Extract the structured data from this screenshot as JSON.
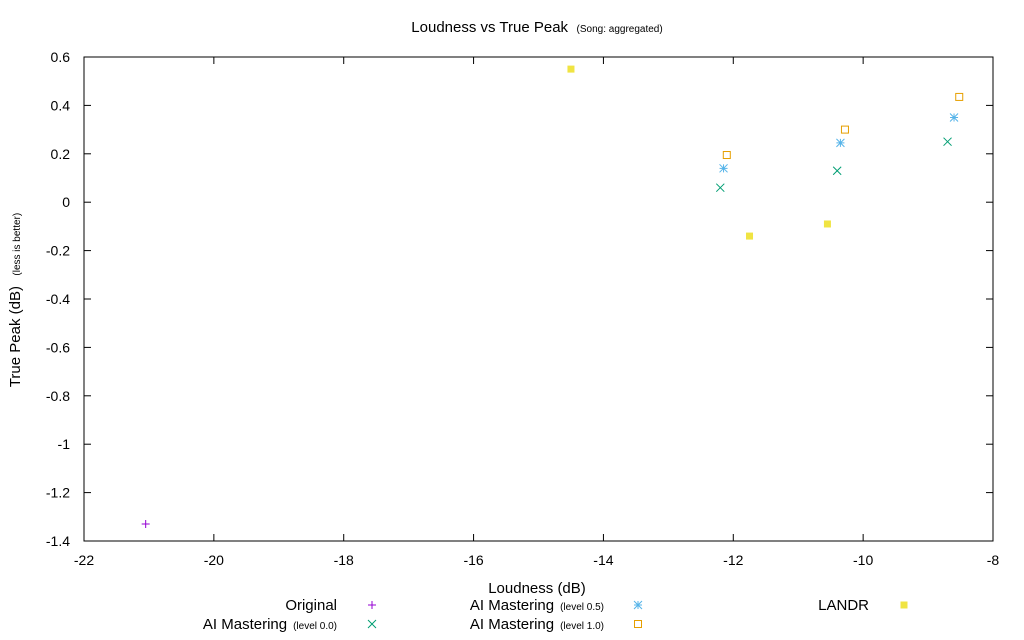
{
  "chart_data": {
    "type": "scatter",
    "title": "Loudness vs True Peak",
    "subtitle": "(Song: aggregated)",
    "xlabel": "Loudness (dB)",
    "ylabel": "True Peak (dB)",
    "ylabel_note": "(less is better)",
    "xlim": [
      -22,
      -8
    ],
    "ylim": [
      -1.4,
      0.6
    ],
    "xticks": [
      -22,
      -20,
      -18,
      -16,
      -14,
      -12,
      -10,
      -8
    ],
    "yticks": [
      -1.4,
      -1.2,
      -1,
      -0.8,
      -0.6,
      -0.4,
      -0.2,
      0,
      0.2,
      0.4,
      0.6
    ],
    "legend_position": "bottom",
    "series": [
      {
        "name": "Original",
        "note": "",
        "marker": "plus",
        "color": "#9400d3",
        "points": [
          {
            "x": -21.05,
            "y": -1.33
          }
        ]
      },
      {
        "name": "AI Mastering",
        "note": "(level 0.0)",
        "marker": "cross",
        "color": "#009e73",
        "points": [
          {
            "x": -12.2,
            "y": 0.06
          },
          {
            "x": -10.4,
            "y": 0.13
          },
          {
            "x": -8.7,
            "y": 0.25
          }
        ]
      },
      {
        "name": "AI Mastering",
        "note": "(level 0.5)",
        "marker": "star",
        "color": "#56b4e9",
        "points": [
          {
            "x": -12.15,
            "y": 0.14
          },
          {
            "x": -10.35,
            "y": 0.245
          },
          {
            "x": -8.6,
            "y": 0.35
          }
        ]
      },
      {
        "name": "AI Mastering",
        "note": "(level 1.0)",
        "marker": "open-square",
        "color": "#e69f00",
        "points": [
          {
            "x": -12.1,
            "y": 0.195
          },
          {
            "x": -10.28,
            "y": 0.3
          },
          {
            "x": -8.52,
            "y": 0.435
          }
        ]
      },
      {
        "name": "LANDR",
        "note": "",
        "marker": "filled-square",
        "color": "#f0e442",
        "points": [
          {
            "x": -14.5,
            "y": 0.55
          },
          {
            "x": -11.75,
            "y": -0.14
          },
          {
            "x": -10.55,
            "y": -0.09
          }
        ]
      }
    ]
  }
}
